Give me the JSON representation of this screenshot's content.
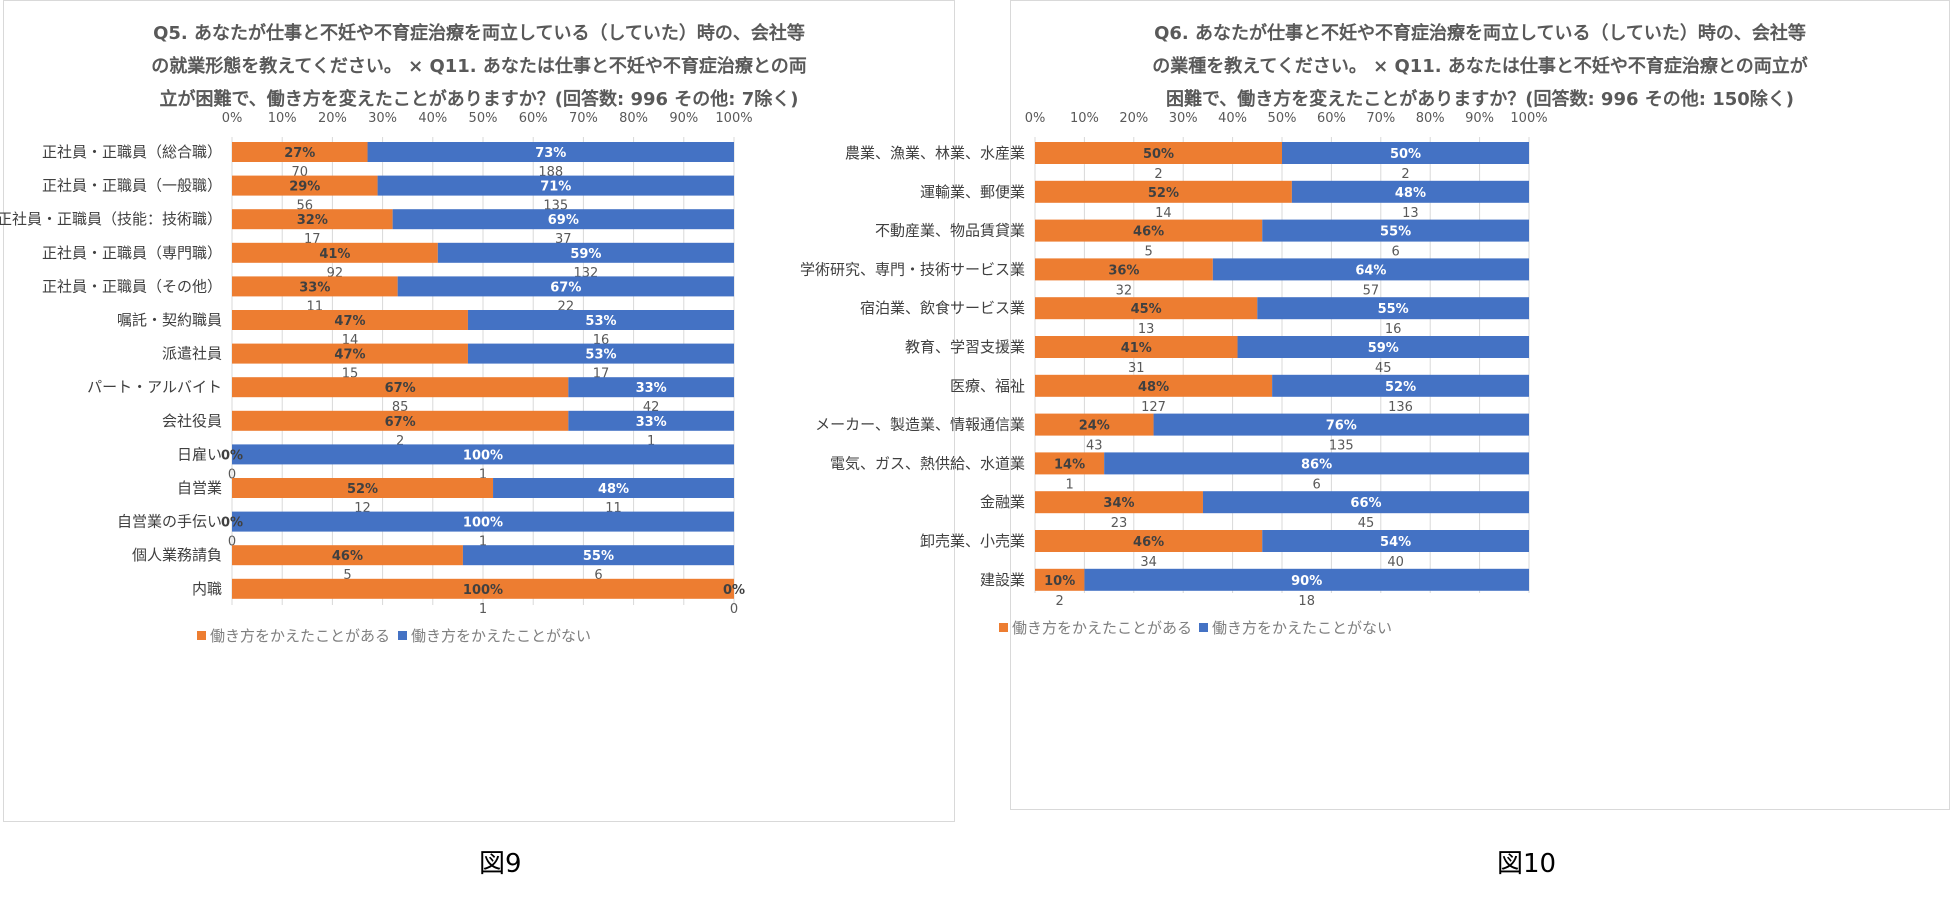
{
  "chart_data": [
    {
      "type": "bar",
      "orientation": "horizontal",
      "stacked": "percent",
      "title_lines": [
        "Q5. あなたが仕事と不妊や不育症治療を両立している（していた）時の、会社等",
        "の就業形態を教えてください。 × Q11. あなたは仕事と不妊や不育症治療との両",
        "立が困難で、働き方を変えたことがありますか？(回答数: 996 その他: 7除く)"
      ],
      "caption": "図9",
      "x_ticks": [
        "0%",
        "10%",
        "20%",
        "30%",
        "40%",
        "50%",
        "60%",
        "70%",
        "80%",
        "90%",
        "100%"
      ],
      "xlim": [
        0,
        100
      ],
      "grid": true,
      "legend_position": "bottom",
      "categories": [
        "正社員・正職員（総合職）",
        "正社員・正職員（一般職）",
        "正社員・正職員（技能：技術職）",
        "正社員・正職員（専門職）",
        "正社員・正職員（その他）",
        "嘱託・契約職員",
        "派遣社員",
        "パート・アルバイト",
        "会社役員",
        "日雇い",
        "自営業",
        "自営業の手伝い",
        "個人業務請負",
        "内職"
      ],
      "series": [
        {
          "name": "働き方をかえたことがある",
          "color": "#ed7d31",
          "percent_labels": [
            "27%",
            "29%",
            "32%",
            "41%",
            "33%",
            "47%",
            "47%",
            "67%",
            "67%",
            "0%",
            "52%",
            "0%",
            "46%",
            "100%"
          ],
          "counts": [
            "70",
            "56",
            "17",
            "92",
            "11",
            "14",
            "15",
            "85",
            "2",
            "0",
            "12",
            "0",
            "5",
            "1"
          ]
        },
        {
          "name": "働き方をかえたことがない",
          "color": "#4472c4",
          "percent_labels": [
            "73%",
            "71%",
            "69%",
            "59%",
            "67%",
            "53%",
            "53%",
            "33%",
            "33%",
            "100%",
            "48%",
            "100%",
            "55%",
            "0%"
          ],
          "counts": [
            "188",
            "135",
            "37",
            "132",
            "22",
            "16",
            "17",
            "42",
            "1",
            "1",
            "11",
            "1",
            "6",
            "0"
          ]
        }
      ]
    },
    {
      "type": "bar",
      "orientation": "horizontal",
      "stacked": "percent",
      "title_lines": [
        "Q6. あなたが仕事と不妊や不育症治療を両立している（していた）時の、会社等",
        "の業種を教えてください。 × Q11. あなたは仕事と不妊や不育症治療との両立が",
        "困難で、働き方を変えたことがありますか？(回答数: 996 その他: 150除く)"
      ],
      "caption": "図10",
      "x_ticks": [
        "0%",
        "10%",
        "20%",
        "30%",
        "40%",
        "50%",
        "60%",
        "70%",
        "80%",
        "90%",
        "100%"
      ],
      "xlim": [
        0,
        100
      ],
      "grid": true,
      "legend_position": "bottom",
      "categories": [
        "農業、漁業、林業、水産業",
        "運輸業、郵便業",
        "不動産業、物品賃貸業",
        "学術研究、専門・技術サービス業",
        "宿泊業、飲食サービス業",
        "教育、学習支援業",
        "医療、福祉",
        "メーカー、製造業、情報通信業",
        "電気、ガス、熱供給、水道業",
        "金融業",
        "卸売業、小売業",
        "建設業"
      ],
      "series": [
        {
          "name": "働き方をかえたことがある",
          "color": "#ed7d31",
          "percent_labels": [
            "50%",
            "52%",
            "46%",
            "36%",
            "45%",
            "41%",
            "48%",
            "24%",
            "14%",
            "34%",
            "46%",
            "10%"
          ],
          "counts": [
            "2",
            "14",
            "5",
            "32",
            "13",
            "31",
            "127",
            "43",
            "1",
            "23",
            "34",
            "2"
          ]
        },
        {
          "name": "働き方をかえたことがない",
          "color": "#4472c4",
          "percent_labels": [
            "50%",
            "48%",
            "55%",
            "64%",
            "55%",
            "59%",
            "52%",
            "76%",
            "86%",
            "66%",
            "54%",
            "90%"
          ],
          "counts": [
            "2",
            "13",
            "6",
            "57",
            "16",
            "45",
            "136",
            "135",
            "6",
            "45",
            "40",
            "18"
          ]
        }
      ]
    }
  ]
}
